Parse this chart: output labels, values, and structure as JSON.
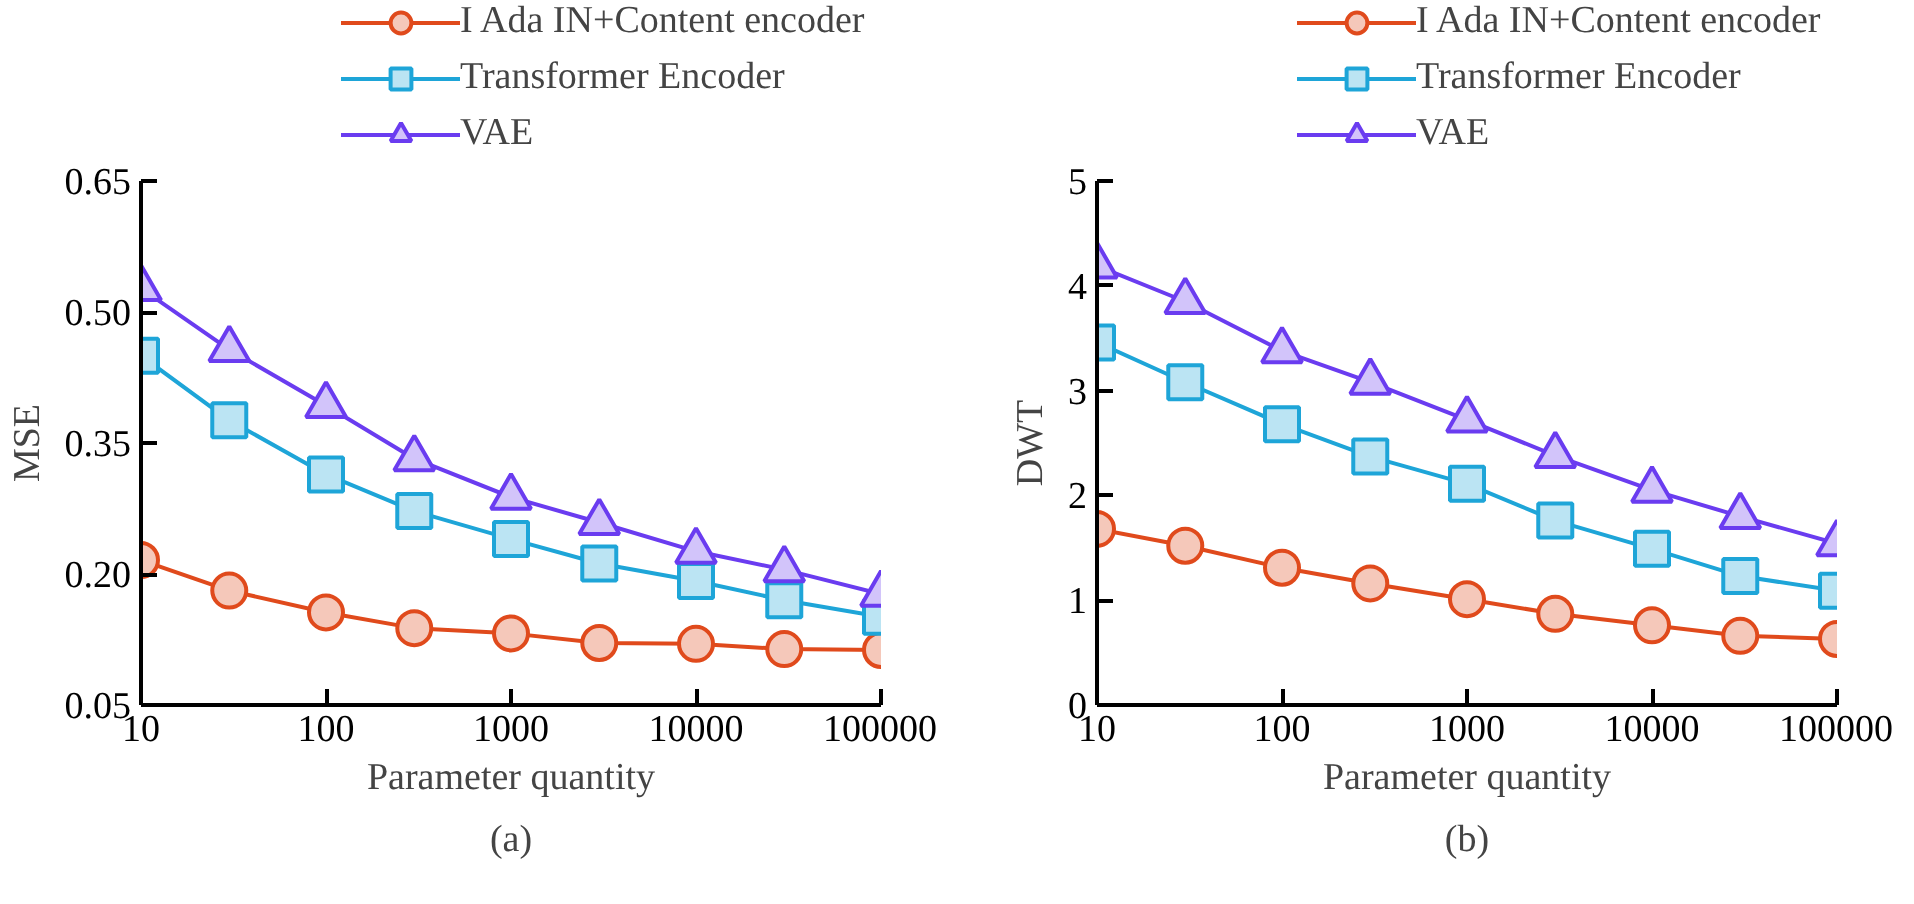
{
  "chart_data": [
    {
      "type": "line",
      "xlabel": "Parameter quantity",
      "ylabel": "MSE",
      "annotations": [
        "(a)"
      ],
      "legend": "top",
      "grid": false,
      "line_style": "solid",
      "log": "x",
      "x": [
        10,
        30,
        100,
        300,
        1000,
        3000,
        10000,
        30000,
        100000
      ],
      "xlim": [
        10,
        100000
      ],
      "xticks": [
        10,
        100,
        1000,
        10000,
        100000
      ],
      "ylim": [
        0.05,
        0.65
      ],
      "yticks": [
        0.05,
        {
          "value": 0.2,
          "label": "0.20"
        },
        0.35,
        {
          "value": 0.5,
          "label": "0.50"
        },
        0.65
      ],
      "series": [
        {
          "name": "I Ada IN+Content encoder",
          "color": "#e04a1c",
          "marker": "circle",
          "values": [
            0.216,
            0.181,
            0.156,
            0.138,
            0.132,
            0.121,
            0.12,
            0.114,
            0.113
          ]
        },
        {
          "name": "Transformer Encoder",
          "color": "#1ea5d8",
          "marker": "square",
          "values": [
            0.45,
            0.376,
            0.314,
            0.272,
            0.24,
            0.212,
            0.192,
            0.17,
            0.151
          ]
        },
        {
          "name": "VAE",
          "color": "#6a3cf0",
          "marker": "triangle",
          "values": [
            0.527,
            0.457,
            0.393,
            0.332,
            0.288,
            0.259,
            0.226,
            0.205,
            0.177
          ]
        }
      ]
    },
    {
      "type": "line",
      "xlabel": "Parameter quantity",
      "ylabel": "DWT",
      "annotations": [
        "(b)"
      ],
      "legend": "top",
      "grid": false,
      "line_style": "solid",
      "log": "x",
      "x": [
        10,
        30,
        100,
        300,
        1000,
        3000,
        10000,
        30000,
        100000
      ],
      "xlim": [
        10,
        100000
      ],
      "xticks": [
        10,
        100,
        1000,
        10000,
        100000
      ],
      "ylim": [
        0,
        5
      ],
      "yticks": [
        0,
        1,
        2,
        3,
        4,
        5
      ],
      "series": [
        {
          "name": "I Ada IN+Content encoder",
          "color": "#e04a1c",
          "marker": "circle",
          "values": [
            1.68,
            1.52,
            1.31,
            1.16,
            1.01,
            0.87,
            0.76,
            0.66,
            0.63
          ]
        },
        {
          "name": "Transformer Encoder",
          "color": "#1ea5d8",
          "marker": "square",
          "values": [
            3.46,
            3.08,
            2.68,
            2.37,
            2.11,
            1.76,
            1.49,
            1.23,
            1.09
          ]
        },
        {
          "name": "VAE",
          "color": "#6a3cf0",
          "marker": "triangle",
          "values": [
            4.19,
            3.85,
            3.38,
            3.08,
            2.72,
            2.38,
            2.05,
            1.8,
            1.54
          ]
        }
      ]
    }
  ]
}
